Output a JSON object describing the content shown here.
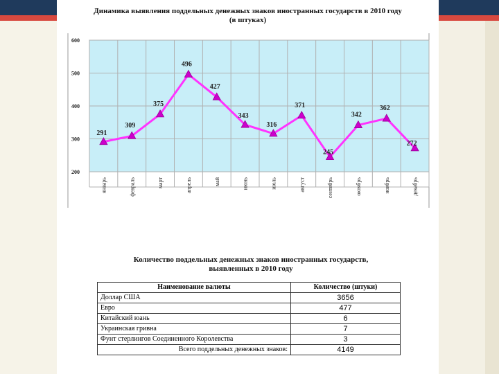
{
  "chart_title": {
    "line1": "Динамика выявления поддельных денежных знаков иностранных государств в 2010 году",
    "line2": "(в штуках)"
  },
  "chart_data": {
    "type": "line",
    "categories": [
      "январь",
      "февраль",
      "март",
      "апрель",
      "май",
      "июнь",
      "июль",
      "август",
      "сентябрь",
      "октябрь",
      "ноябрь",
      "декабрь"
    ],
    "values": [
      291,
      309,
      375,
      496,
      427,
      343,
      316,
      371,
      245,
      342,
      362,
      272
    ],
    "title": "Динамика выявления поддельных денежных знаков иностранных государств в 2010 году (в штуках)",
    "ylim": [
      200,
      600
    ],
    "yticks": [
      200,
      300,
      400,
      500,
      600
    ],
    "grid": true,
    "colors": {
      "line": "#ff33ff",
      "plot_bg": "#c8eef8",
      "grid": "#b0b0b0"
    }
  },
  "table_section": {
    "title_line1": "Количество поддельных денежных знаков иностранных государств,",
    "title_line2": "выявленных в 2010 году",
    "headers": [
      "Наименование валюты",
      "Количество (штуки)"
    ],
    "rows": [
      {
        "name": "Доллар США",
        "qty": "3656"
      },
      {
        "name": "Евро",
        "qty": "477"
      },
      {
        "name": "Китайский юань",
        "qty": "6"
      },
      {
        "name": "Украинская гривна",
        "qty": "7"
      },
      {
        "name": "Фунт стерлингов Соединенного Королевства",
        "qty": "3"
      }
    ],
    "total_label": "Всего поддельных денежных знаков:",
    "total_qty": "4149"
  }
}
